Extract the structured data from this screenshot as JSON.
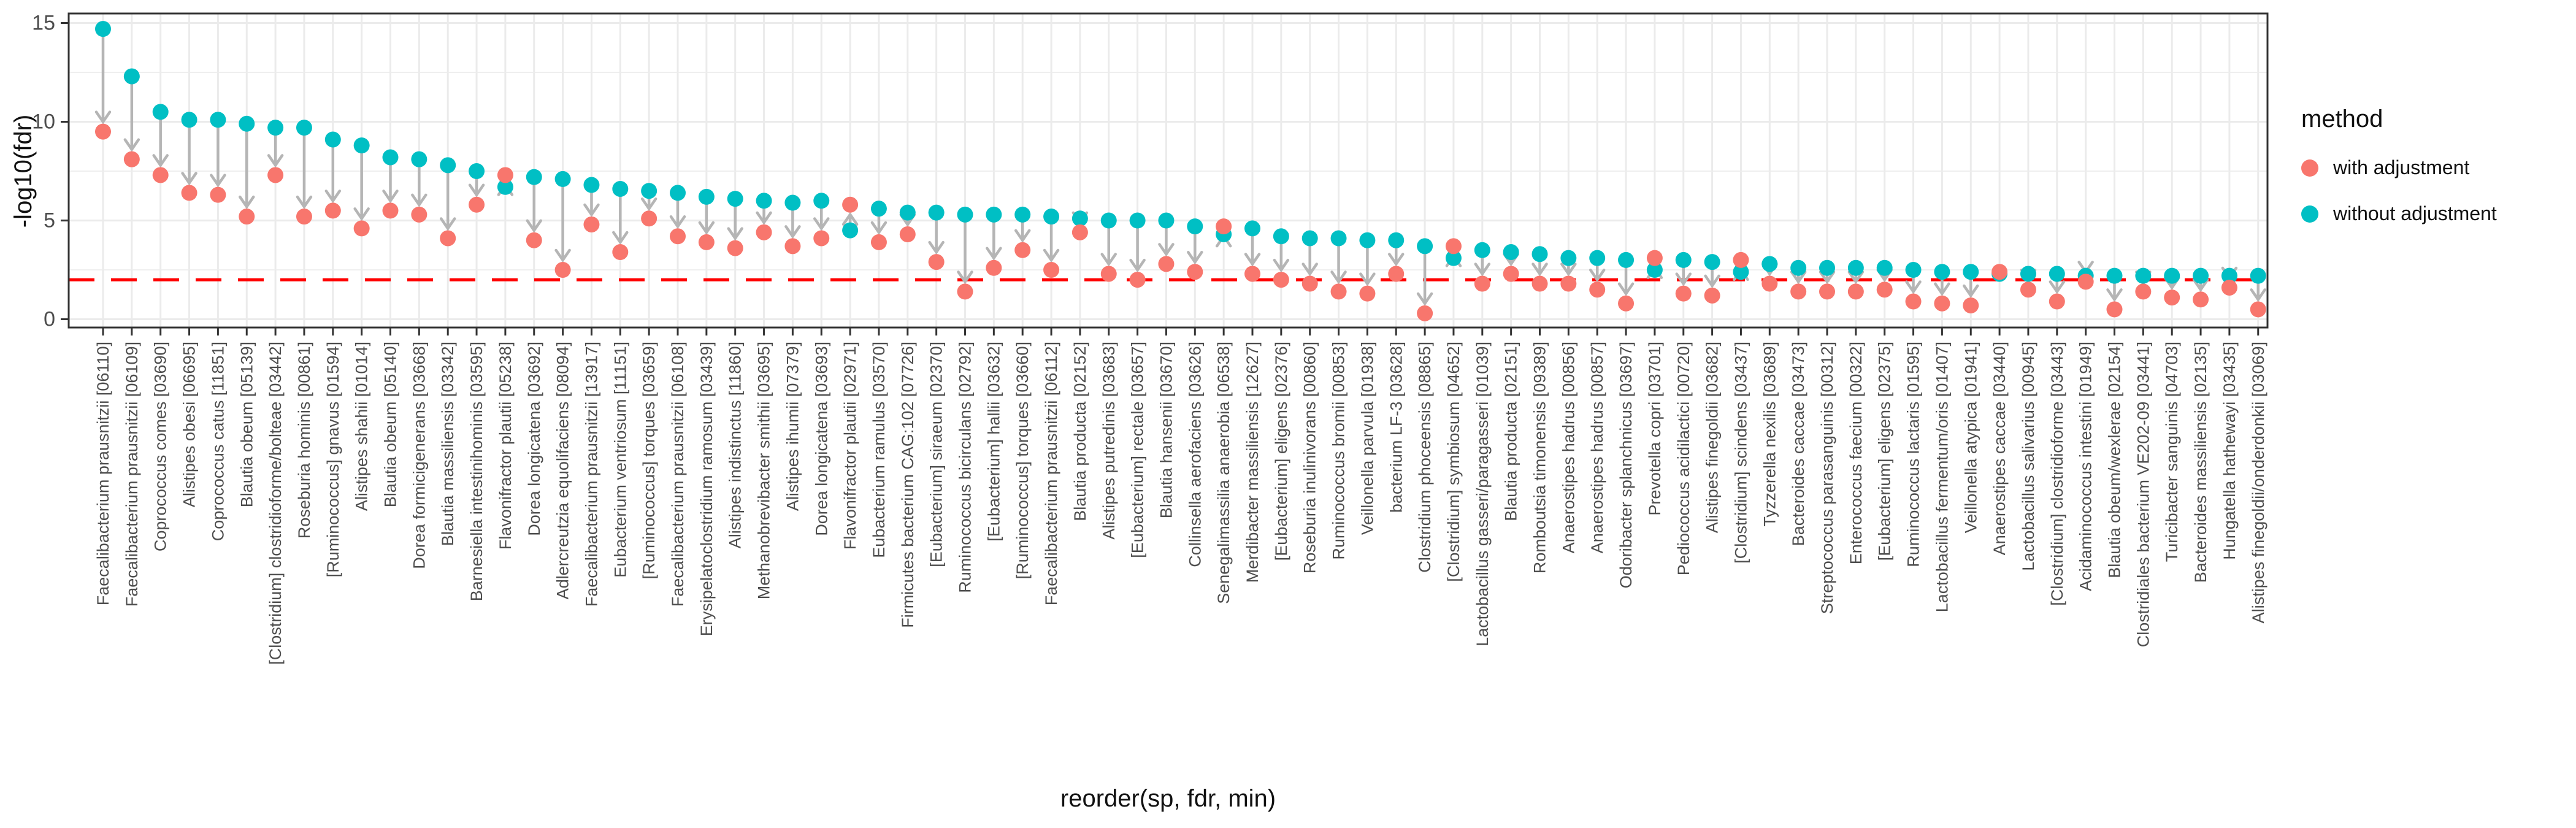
{
  "figure": {
    "background": "#FFFFFF"
  },
  "legend": {
    "title": "method",
    "items": [
      {
        "label": "with adjustment",
        "color": "#F8766D",
        "marker": "circle-icon"
      },
      {
        "label": "without adjustment",
        "color": "#00BFC4",
        "marker": "circle-icon"
      }
    ]
  },
  "chart_data": {
    "type": "scatter",
    "title": "",
    "xlabel": "reorder(sp, fdr, min)",
    "ylabel": "-log10(fdr)",
    "ylim": [
      0,
      15
    ],
    "y_ticks": [
      0,
      5,
      10,
      15
    ],
    "y_minor_ticks": [
      2.5,
      7.5,
      12.5
    ],
    "grid": "on",
    "legend_position": "right",
    "threshold_line": {
      "y": 2,
      "color": "#FF0000",
      "style": "dashed"
    },
    "arrow_color": "#B5B5B5",
    "arrow_direction": "from without-adjustment point to with-adjustment point",
    "categories": [
      "Faecalibacterium prausnitzii [06110]",
      "Faecalibacterium prausnitzii [06109]",
      "Coprococcus comes [03690]",
      "Alistipes obesi [06695]",
      "Coprococcus catus [11851]",
      "Blautia obeum [05139]",
      "[Clostridium] clostridioforme/bolteae [03442]",
      "Roseburia hominis [00861]",
      "[Ruminococcus] gnavus [01594]",
      "Alistipes shahii [01014]",
      "Blautia obeum [05140]",
      "Dorea formicigenerans [03668]",
      "Blautia massiliensis [03342]",
      "Barnesiella intestinihominis [03595]",
      "Flavonifractor plautii [05238]",
      "Dorea longicatena [03692]",
      "Adlercreutzia equolifaciens [08094]",
      "Faecalibacterium prausnitzii [13917]",
      "Eubacterium ventriosum [11151]",
      "[Ruminococcus] torques [03659]",
      "Faecalibacterium prausnitzii [06108]",
      "Erysipelatoclostridium ramosum [03439]",
      "Alistipes indistinctus [11860]",
      "Methanobrevibacter smithii [03695]",
      "Alistipes ihumii [07379]",
      "Dorea longicatena [03693]",
      "Flavonifractor plautii [02971]",
      "Eubacterium ramulus [03570]",
      "Firmicutes bacterium CAG:102 [07726]",
      "[Eubacterium] siraeum [02370]",
      "Ruminococcus bicirculans [02792]",
      "[Eubacterium] hallii [03632]",
      "[Ruminococcus] torques [03660]",
      "Faecalibacterium prausnitzii [06112]",
      "Blautia producta [02152]",
      "Alistipes putredinis [03683]",
      "[Eubacterium] rectale [03657]",
      "Blautia hansenii [03670]",
      "Collinsella aerofaciens [03626]",
      "Senegalimassilia anaerobia [06538]",
      "Merdibacter massiliensis [12627]",
      "[Eubacterium] eligens [02376]",
      "Roseburia inulinivorans [00860]",
      "Ruminococcus bromii [00853]",
      "Veillonella parvula [01938]",
      "bacterium LF-3 [03628]",
      "Clostridium phoceensis [08865]",
      "[Clostridium] symbiosum [04652]",
      "Lactobacillus gasseri/paragasseri [01039]",
      "Blautia producta [02151]",
      "Romboutsia timonensis [09389]",
      "Anaerostipes hadrus [00856]",
      "Anaerostipes hadrus [00857]",
      "Odoribacter splanchnicus [03697]",
      "Prevotella copri [03701]",
      "Pediococcus acidilactici [00720]",
      "Alistipes finegoldii [03682]",
      "[Clostridium] scindens [03437]",
      "Tyzzerella nexilis [03689]",
      "Bacteroides caccae [03473]",
      "Streptococcus parasanguinis [00312]",
      "Enterococcus faecium [00322]",
      "[Eubacterium] eligens [02375]",
      "Ruminococcus lactaris [01595]",
      "Lactobacillus fermentum/oris [01407]",
      "Veillonella atypica [01941]",
      "Anaerostipes caccae [03440]",
      "Lactobacillus salivarius [00945]",
      "[Clostridium] clostridioforme [03443]",
      "Acidaminococcus intestini [01949]",
      "Blautia obeum/wexlerae [02154]",
      "Clostridiales bacterium VE202-09 [03441]",
      "Turicibacter sanguinis [04703]",
      "Bacteroides massiliensis [02135]",
      "Hungatella hathewayi [03435]",
      "Alistipes finegoldii/onderdonkii [03069]"
    ],
    "series": [
      {
        "name": "with adjustment",
        "color": "#F8766D",
        "values": [
          9.5,
          8.1,
          7.3,
          6.4,
          6.3,
          5.2,
          7.3,
          5.2,
          5.5,
          4.6,
          5.5,
          5.3,
          4.1,
          5.8,
          7.3,
          4.0,
          2.5,
          4.8,
          3.4,
          5.1,
          4.2,
          3.9,
          3.6,
          4.4,
          3.7,
          4.1,
          5.8,
          3.9,
          4.3,
          2.9,
          1.4,
          2.6,
          3.5,
          2.5,
          4.4,
          2.3,
          2.0,
          2.8,
          2.4,
          4.7,
          2.3,
          2.0,
          1.8,
          1.4,
          1.3,
          2.3,
          0.3,
          3.7,
          1.8,
          2.3,
          1.8,
          1.8,
          1.5,
          0.8,
          3.1,
          1.3,
          1.2,
          3.0,
          1.8,
          1.4,
          1.4,
          1.4,
          1.5,
          0.9,
          0.8,
          0.7,
          2.4,
          1.5,
          0.9,
          1.9,
          0.5,
          1.4,
          1.1,
          1.0,
          1.6,
          0.5
        ]
      },
      {
        "name": "without adjustment",
        "color": "#00BFC4",
        "values": [
          14.7,
          12.3,
          10.5,
          10.1,
          10.1,
          9.9,
          9.7,
          9.7,
          9.1,
          8.8,
          8.2,
          8.1,
          7.8,
          7.5,
          6.7,
          7.2,
          7.1,
          6.8,
          6.6,
          6.5,
          6.4,
          6.2,
          6.1,
          6.0,
          5.9,
          6.0,
          4.5,
          5.6,
          5.4,
          5.4,
          5.3,
          5.3,
          5.3,
          5.2,
          5.1,
          5.0,
          5.0,
          5.0,
          4.7,
          4.3,
          4.6,
          4.2,
          4.1,
          4.1,
          4.0,
          4.0,
          3.7,
          3.1,
          3.5,
          3.4,
          3.3,
          3.1,
          3.1,
          3.0,
          2.5,
          3.0,
          2.9,
          2.4,
          2.8,
          2.6,
          2.6,
          2.6,
          2.6,
          2.5,
          2.4,
          2.4,
          2.3,
          2.3,
          2.3,
          2.2,
          2.2,
          2.2,
          2.2,
          2.2,
          2.2,
          2.2
        ]
      }
    ]
  }
}
